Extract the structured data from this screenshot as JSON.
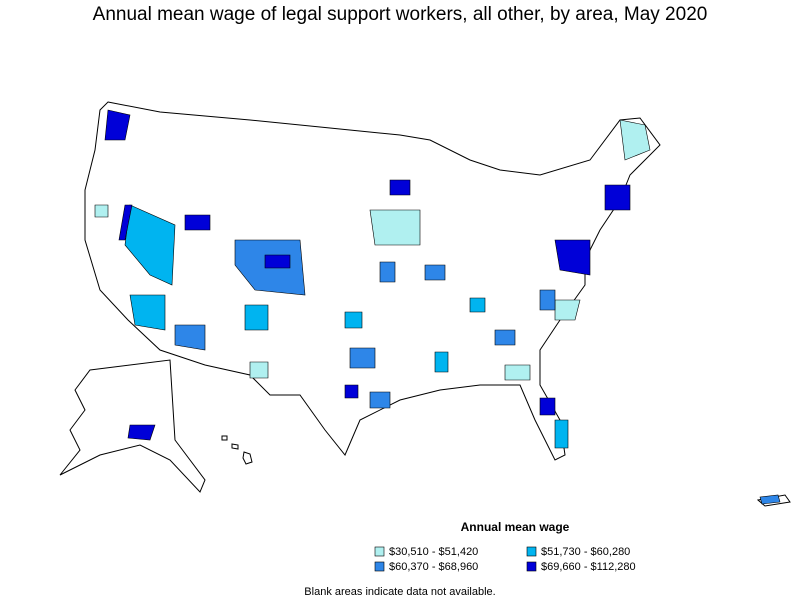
{
  "title": "Annual mean wage of legal support workers, all other, by area, May 2020",
  "legend": {
    "title": "Annual mean wage",
    "items": [
      {
        "label": "$30,510 - $51,420",
        "color": "#b0f0f0"
      },
      {
        "label": "$51,730 - $60,280",
        "color": "#00b4f0"
      },
      {
        "label": "$60,370 - $68,960",
        "color": "#2e86e8"
      },
      {
        "label": "$69,660 - $112,280",
        "color": "#0000d8"
      }
    ]
  },
  "note": "Blank areas indicate data not available."
}
